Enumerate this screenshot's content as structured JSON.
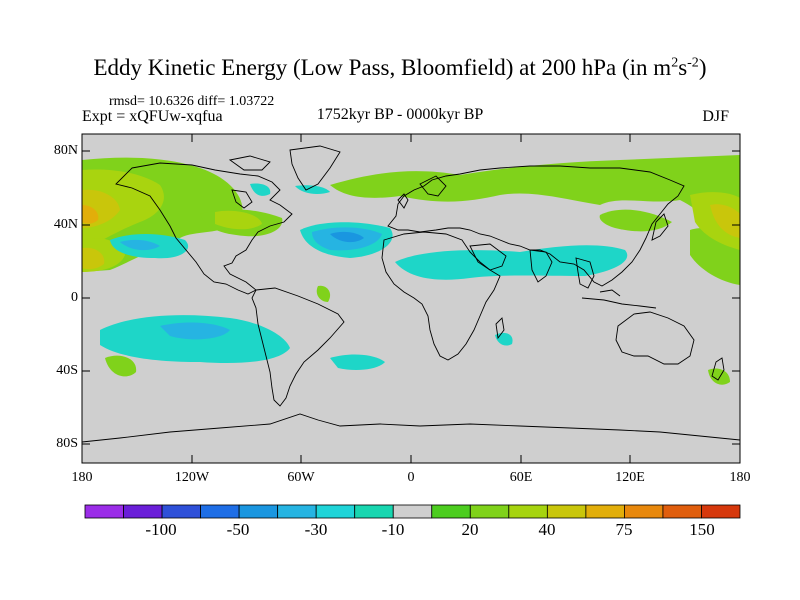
{
  "title": {
    "main": "Eddy Kinetic Energy (Low Pass, Bloomfield) at 200 hPa (in m",
    "sup1": "2",
    "mid": "s",
    "sup2": "-2",
    "end": ")"
  },
  "stats": "rmsd= 10.6326  diff= 1.03722",
  "expt": "Expt = xQFUw-xqfua",
  "period": "1752kyr BP - 0000kyr BP",
  "season": "DJF",
  "lat_labels": [
    "80N",
    "40N",
    "0",
    "40S",
    "80S"
  ],
  "lon_labels": [
    "180",
    "120W",
    "60W",
    "0",
    "60E",
    "120E",
    "180"
  ],
  "colorbar": {
    "colors": [
      "#9b2de8",
      "#6a1ed8",
      "#2e50d8",
      "#1e6ee6",
      "#1a96e0",
      "#26b4e2",
      "#1fd4d8",
      "#18d6b0",
      "#cfcfcf",
      "#4ccd1f",
      "#7fd21a",
      "#a6d40f",
      "#c9c60b",
      "#e2ae0a",
      "#e8880c",
      "#e05e0d",
      "#d6380c"
    ],
    "labels": [
      "-100",
      "-50",
      "-30",
      "-10",
      "20",
      "40",
      "75",
      "150"
    ]
  }
}
